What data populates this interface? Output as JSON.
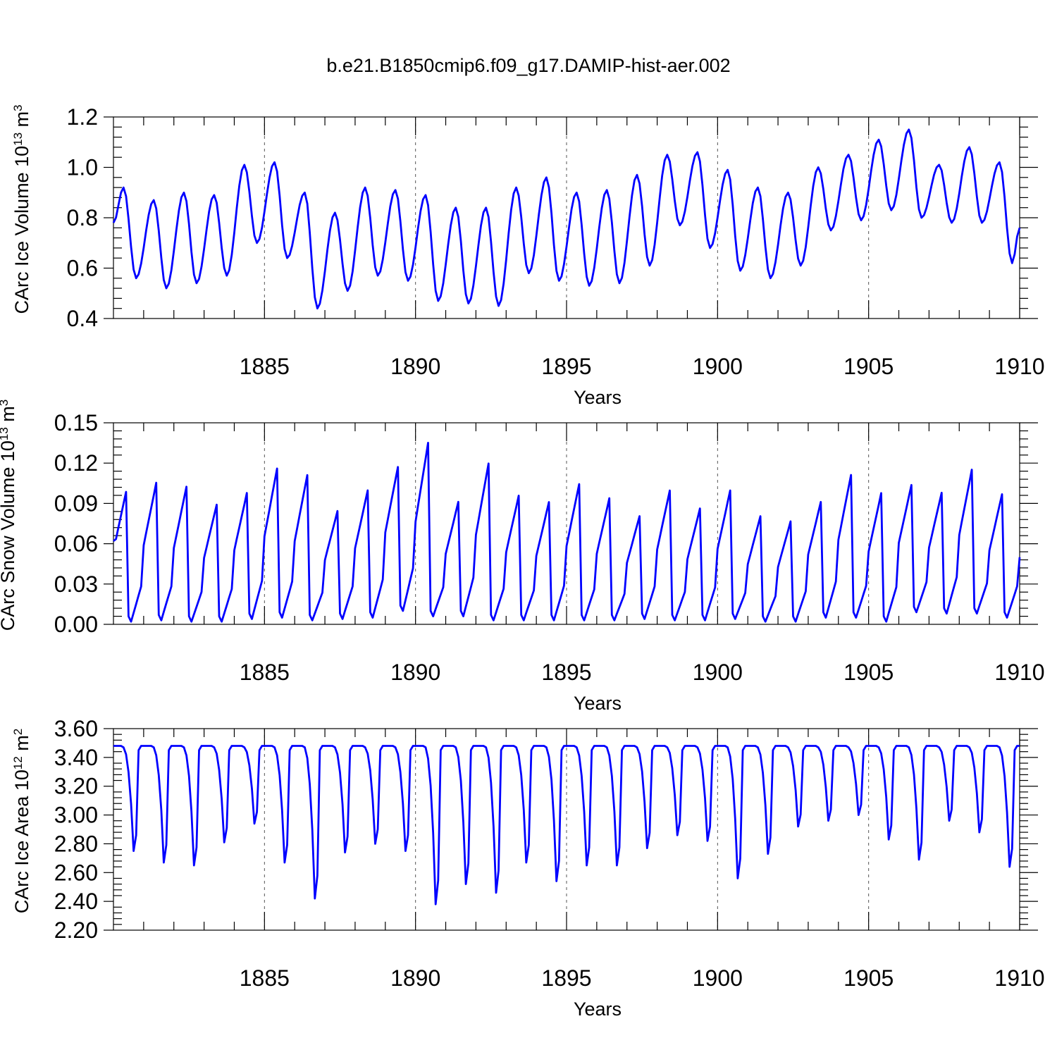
{
  "title": "b.e21.B1850cmip6.f09_g17.DAMIP-hist-aer.002",
  "colors": {
    "line": "#0000ff",
    "axis": "#000000",
    "grid": "#555555"
  },
  "chart_data": [
    {
      "type": "line",
      "name": "ice-volume",
      "ylabel_main": "CArc Ice Volume 10",
      "ylabel_exp": "13",
      "ylabel_unit": " m",
      "ylabel_unit_exp": "3",
      "xlabel": "Years",
      "xlim": [
        1880,
        1910
      ],
      "ylim": [
        0.4,
        1.2
      ],
      "xticks": [
        1885,
        1890,
        1895,
        1900,
        1905,
        1910
      ],
      "xtick_labels": [
        "1885",
        "1890",
        "1895",
        "1900",
        "1905",
        "1910"
      ],
      "yticks": [
        0.4,
        0.6,
        0.8,
        1.0,
        1.2
      ],
      "ytick_labels": [
        "0.4",
        "0.6",
        "0.8",
        "1.0",
        "1.2"
      ],
      "grid": "dashed vertical at major x ticks",
      "series": [
        {
          "name": "CArc Ice Volume",
          "peaks": [
            0.92,
            0.87,
            0.9,
            0.89,
            1.01,
            1.02,
            0.9,
            0.82,
            0.92,
            0.91,
            0.89,
            0.84,
            0.84,
            0.92,
            0.96,
            0.9,
            0.91,
            0.97,
            1.05,
            1.06,
            0.99,
            0.92,
            0.9,
            1.0,
            1.05,
            1.11,
            1.15,
            1.01,
            1.08,
            1.02
          ],
          "troughs": [
            0.56,
            0.52,
            0.54,
            0.57,
            0.7,
            0.64,
            0.44,
            0.51,
            0.57,
            0.55,
            0.47,
            0.46,
            0.45,
            0.58,
            0.55,
            0.53,
            0.54,
            0.61,
            0.77,
            0.68,
            0.59,
            0.56,
            0.61,
            0.75,
            0.79,
            0.83,
            0.8,
            0.78,
            0.78,
            0.62
          ],
          "start": 0.78,
          "end": 0.76
        }
      ]
    },
    {
      "type": "line",
      "name": "snow-volume",
      "ylabel_main": "CArc Snow Volume 10",
      "ylabel_exp": "13",
      "ylabel_unit": " m",
      "ylabel_unit_exp": "3",
      "xlabel": "Years",
      "xlim": [
        1880,
        1910
      ],
      "ylim": [
        0.0,
        0.15
      ],
      "xticks": [
        1885,
        1890,
        1895,
        1900,
        1905,
        1910
      ],
      "xtick_labels": [
        "1885",
        "1890",
        "1895",
        "1900",
        "1905",
        "1910"
      ],
      "yticks": [
        0.0,
        0.03,
        0.06,
        0.09,
        0.12,
        0.15
      ],
      "ytick_labels": [
        "0.00",
        "0.03",
        "0.06",
        "0.09",
        "0.12",
        "0.15"
      ],
      "grid": "dashed vertical at major x ticks",
      "series": [
        {
          "name": "CArc Snow Volume",
          "peaks": [
            0.103,
            0.11,
            0.107,
            0.093,
            0.102,
            0.121,
            0.116,
            0.088,
            0.104,
            0.122,
            0.141,
            0.095,
            0.125,
            0.1,
            0.095,
            0.109,
            0.098,
            0.084,
            0.104,
            0.09,
            0.104,
            0.084,
            0.08,
            0.095,
            0.116,
            0.102,
            0.108,
            0.102,
            0.12,
            0.101
          ],
          "troughs": [
            0.002,
            0.003,
            0.002,
            0.002,
            0.004,
            0.005,
            0.003,
            0.004,
            0.005,
            0.01,
            0.006,
            0.006,
            0.003,
            0.003,
            0.003,
            0.003,
            0.003,
            0.004,
            0.003,
            0.003,
            0.004,
            0.002,
            0.002,
            0.005,
            0.005,
            0.002,
            0.009,
            0.008,
            0.008,
            0.005
          ],
          "start": 0.062,
          "end": 0.05
        }
      ]
    },
    {
      "type": "line",
      "name": "ice-area",
      "ylabel_main": "CArc Ice Area 10",
      "ylabel_exp": "12",
      "ylabel_unit": " m",
      "ylabel_unit_exp": "2",
      "xlabel": "Years",
      "xlim": [
        1880,
        1910
      ],
      "ylim": [
        2.2,
        3.6
      ],
      "xticks": [
        1885,
        1890,
        1895,
        1900,
        1905,
        1910
      ],
      "xtick_labels": [
        "1885",
        "1890",
        "1895",
        "1900",
        "1905",
        "1910"
      ],
      "yticks": [
        2.2,
        2.4,
        2.6,
        2.8,
        3.0,
        3.2,
        3.4,
        3.6
      ],
      "ytick_labels": [
        "2.20",
        "2.40",
        "2.60",
        "2.80",
        "3.00",
        "3.20",
        "3.40",
        "3.60"
      ],
      "grid": "dashed vertical at major x ticks",
      "series": [
        {
          "name": "CArc Ice Area",
          "plateau": 3.48,
          "troughs": [
            2.75,
            2.67,
            2.65,
            2.81,
            2.94,
            2.67,
            2.42,
            2.74,
            2.8,
            2.75,
            2.38,
            2.52,
            2.46,
            2.67,
            2.54,
            2.65,
            2.65,
            2.77,
            2.86,
            2.82,
            2.56,
            2.73,
            2.92,
            2.96,
            3.0,
            2.83,
            2.69,
            2.96,
            2.88,
            2.64
          ],
          "start": 3.48,
          "end": 3.48
        }
      ]
    }
  ]
}
